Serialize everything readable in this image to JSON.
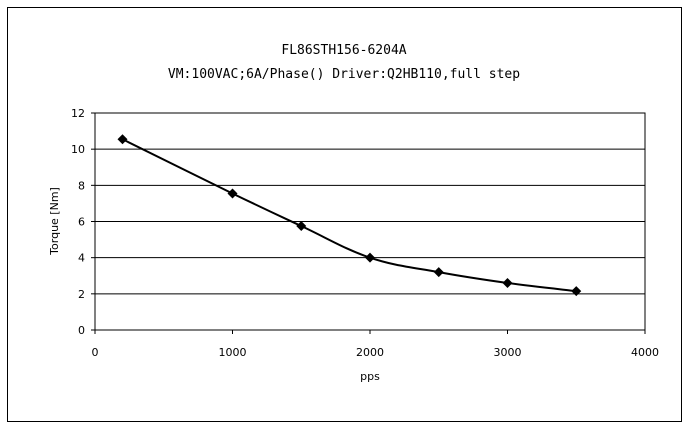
{
  "chart_data": {
    "type": "line",
    "title": "FL86STH156-6204A",
    "subtitle": "VM:100VAC;6A/Phase() Driver:Q2HB110,full step",
    "xlabel": "pps",
    "ylabel": "Torque [Nm]",
    "xlim": [
      0,
      4000
    ],
    "ylim": [
      0,
      12
    ],
    "xticks": [
      0,
      1000,
      2000,
      3000,
      4000
    ],
    "yticks": [
      0,
      2,
      4,
      6,
      8,
      10,
      12
    ],
    "grid": "horizontal",
    "legend": "none",
    "series": [
      {
        "marker": "diamond",
        "color": "#000000",
        "x": [
          200,
          1000,
          1500,
          2000,
          2500,
          3000,
          3500
        ],
        "y": [
          10.55,
          7.55,
          5.75,
          4.0,
          3.2,
          2.6,
          2.15
        ]
      }
    ]
  }
}
